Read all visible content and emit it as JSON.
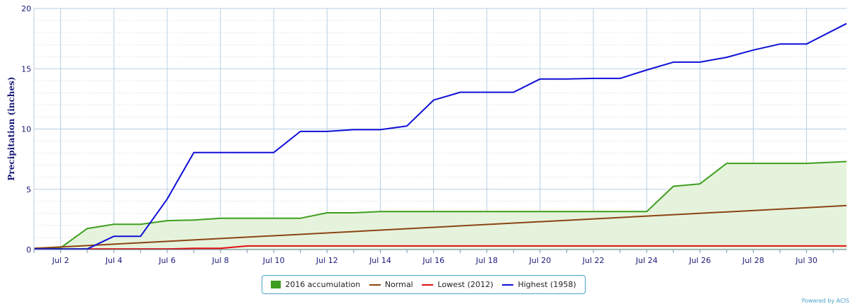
{
  "chart_data": {
    "type": "line",
    "ylabel": "Precipitation (inches)",
    "ylim": [
      0,
      20
    ],
    "yticks": [
      0,
      5,
      10,
      15,
      20
    ],
    "xlim": [
      1,
      31.5
    ],
    "xticks": [
      {
        "day": 2,
        "label": "Jul 2"
      },
      {
        "day": 4,
        "label": "Jul 4"
      },
      {
        "day": 6,
        "label": "Jul 6"
      },
      {
        "day": 8,
        "label": "Jul 8"
      },
      {
        "day": 10,
        "label": "Jul 10"
      },
      {
        "day": 12,
        "label": "Jul 12"
      },
      {
        "day": 14,
        "label": "Jul 14"
      },
      {
        "day": 16,
        "label": "Jul 16"
      },
      {
        "day": 18,
        "label": "Jul 18"
      },
      {
        "day": 20,
        "label": "Jul 20"
      },
      {
        "day": 22,
        "label": "Jul 22"
      },
      {
        "day": 24,
        "label": "Jul 24"
      },
      {
        "day": 26,
        "label": "Jul 26"
      },
      {
        "day": 28,
        "label": "Jul 28"
      },
      {
        "day": 30,
        "label": "Jul 30"
      }
    ],
    "grid": true,
    "legend_position": "bottom-center",
    "series": [
      {
        "name": "2016 accumulation",
        "kind": "area",
        "color": "#3f9e1f",
        "fill": "#e6f3dc",
        "x": [
          1,
          2,
          3,
          4,
          5,
          6,
          7,
          8,
          9,
          10,
          11,
          12,
          13,
          14,
          15,
          16,
          17,
          18,
          19,
          20,
          21,
          22,
          23,
          24,
          25,
          26,
          27,
          28,
          29,
          30,
          31.5
        ],
        "values": [
          0.1,
          0.15,
          1.75,
          2.1,
          2.1,
          2.4,
          2.45,
          2.6,
          2.6,
          2.6,
          2.6,
          3.05,
          3.05,
          3.15,
          3.15,
          3.15,
          3.15,
          3.15,
          3.15,
          3.15,
          3.15,
          3.15,
          3.15,
          3.15,
          5.25,
          5.45,
          7.15,
          7.15,
          7.15,
          7.15,
          7.3
        ]
      },
      {
        "name": "Normal",
        "kind": "line",
        "color": "#8b4513",
        "x": [
          1,
          31.5
        ],
        "values": [
          0.1,
          3.65
        ]
      },
      {
        "name": "Lowest (2012)",
        "kind": "line",
        "color": "#e01010",
        "x": [
          1,
          2,
          3,
          4,
          5,
          6,
          7,
          8,
          9,
          10,
          31.5
        ],
        "values": [
          0.05,
          0.05,
          0.05,
          0.05,
          0.05,
          0.05,
          0.1,
          0.1,
          0.3,
          0.3,
          0.3
        ]
      },
      {
        "name": "Highest (1958)",
        "kind": "line",
        "color": "#1010d8",
        "x": [
          1,
          2,
          3,
          4,
          5,
          6,
          7,
          8,
          9,
          10,
          11,
          12,
          13,
          14,
          15,
          16,
          17,
          18,
          19,
          20,
          21,
          22,
          23,
          24,
          25,
          26,
          27,
          28,
          29,
          30,
          31.5
        ],
        "values": [
          0.05,
          0.05,
          0.05,
          1.1,
          1.1,
          4.2,
          8.05,
          8.05,
          8.05,
          8.05,
          9.8,
          9.8,
          9.95,
          9.95,
          10.25,
          12.4,
          13.05,
          13.05,
          13.05,
          14.15,
          14.15,
          14.2,
          14.2,
          14.9,
          15.55,
          15.55,
          15.95,
          16.55,
          17.05,
          17.05,
          18.75
        ]
      }
    ]
  },
  "credit": "Powered by ACIS"
}
